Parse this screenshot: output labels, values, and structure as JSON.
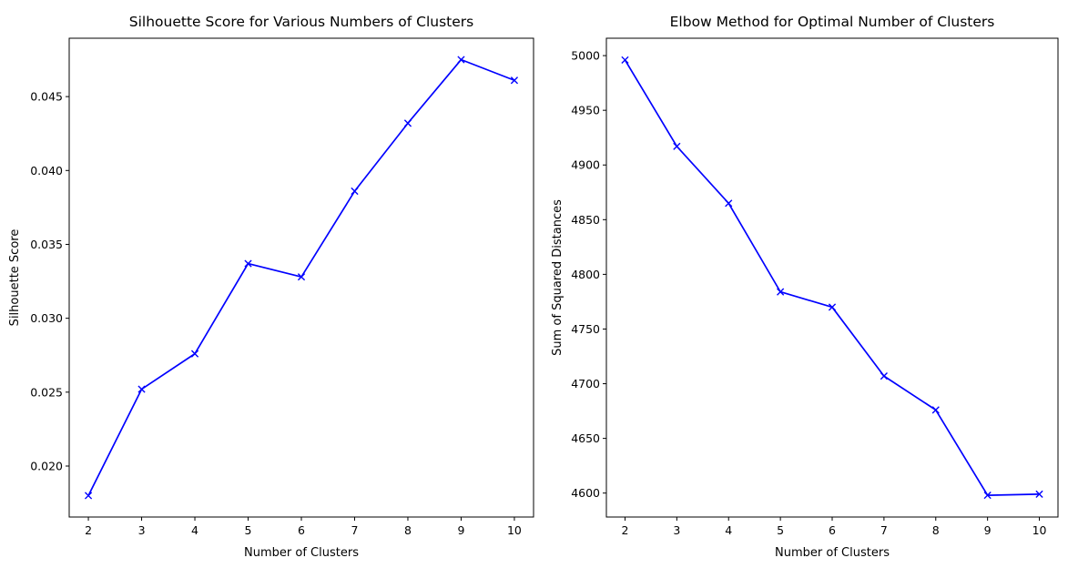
{
  "chart_data": [
    {
      "type": "line",
      "title": "Silhouette Score for Various Numbers of Clusters",
      "xlabel": "Number of Clusters",
      "ylabel": "Silhouette Score",
      "x": [
        2,
        3,
        4,
        5,
        6,
        7,
        8,
        9,
        10
      ],
      "xticks": [
        "2",
        "3",
        "4",
        "5",
        "6",
        "7",
        "8",
        "9",
        "10"
      ],
      "yticks": [
        "0.020",
        "0.025",
        "0.030",
        "0.035",
        "0.040",
        "0.045"
      ],
      "ytick_values": [
        0.02,
        0.025,
        0.03,
        0.035,
        0.04,
        0.045
      ],
      "series": [
        {
          "values": [
            0.018,
            0.0252,
            0.0276,
            0.0337,
            0.0328,
            0.0386,
            0.0432,
            0.0475,
            0.0461
          ],
          "color": "#0000ff",
          "marker": "x"
        }
      ],
      "xlim": [
        1.64,
        10.36
      ],
      "ylim": [
        0.01655,
        0.04895
      ],
      "grid": false
    },
    {
      "type": "line",
      "title": "Elbow Method for Optimal Number of Clusters",
      "xlabel": "Number of Clusters",
      "ylabel": "Sum of Squared Distances",
      "x": [
        2,
        3,
        4,
        5,
        6,
        7,
        8,
        9,
        10
      ],
      "xticks": [
        "2",
        "3",
        "4",
        "5",
        "6",
        "7",
        "8",
        "9",
        "10"
      ],
      "yticks": [
        "4600",
        "4650",
        "4700",
        "4750",
        "4800",
        "4850",
        "4900",
        "4950",
        "5000"
      ],
      "ytick_values": [
        4600,
        4650,
        4700,
        4750,
        4800,
        4850,
        4900,
        4950,
        5000
      ],
      "series": [
        {
          "values": [
            4996,
            4917,
            4865,
            4784,
            4770,
            4707,
            4676,
            4598,
            4599
          ],
          "color": "#0000ff",
          "marker": "x"
        }
      ],
      "xlim": [
        1.64,
        10.36
      ],
      "ylim": [
        4578.1,
        5015.9
      ],
      "grid": false
    }
  ]
}
